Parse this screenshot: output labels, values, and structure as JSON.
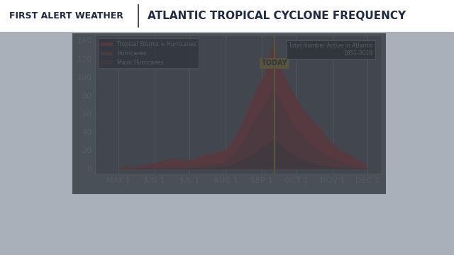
{
  "chart_data": {
    "type": "area",
    "title": "ATLANTIC TROPICAL CYCLONE FREQUENCY",
    "subtitle": "FIRST ALERT WEATHER",
    "note": "Total Number Active in Atlantic\n1851-2018",
    "x": [
      0,
      7,
      14,
      21,
      28,
      35,
      42,
      49,
      56,
      63,
      70,
      77,
      84,
      91,
      98,
      105,
      112,
      119,
      126,
      133,
      140,
      147,
      154,
      161,
      168,
      175,
      182,
      189,
      196,
      203,
      210,
      214
    ],
    "series": [
      {
        "name": "Tropical Storms + Hurricanes",
        "color": "#ff1a1a",
        "values": [
          2,
          3,
          3,
          4,
          6,
          8,
          10,
          12,
          9,
          10,
          14,
          16,
          18,
          20,
          30,
          45,
          68,
          88,
          105,
          138,
          110,
          90,
          75,
          62,
          52,
          42,
          30,
          22,
          18,
          12,
          8,
          4
        ]
      },
      {
        "name": "Hurricanes",
        "color": "#b3201f",
        "values": [
          0,
          0,
          1,
          1,
          2,
          2,
          3,
          3,
          2,
          3,
          4,
          5,
          6,
          8,
          14,
          25,
          42,
          58,
          72,
          88,
          72,
          55,
          42,
          32,
          25,
          18,
          12,
          8,
          5,
          3,
          2,
          1
        ]
      },
      {
        "name": "Major Hurricanes",
        "color": "#6e1c1c",
        "values": [
          0,
          0,
          0,
          0,
          0,
          0,
          0,
          1,
          0,
          1,
          1,
          1,
          2,
          3,
          5,
          9,
          14,
          20,
          26,
          32,
          26,
          18,
          12,
          9,
          6,
          4,
          3,
          2,
          1,
          1,
          0,
          0
        ]
      }
    ],
    "annotations": [
      {
        "x": 134,
        "text": "TODAY",
        "color": "#ffd400"
      }
    ],
    "xlim": [
      -20,
      226
    ],
    "xticks": [
      {
        "value": 0,
        "label": "MAY 1"
      },
      {
        "value": 31,
        "label": "JUN 1"
      },
      {
        "value": 61,
        "label": "JUL 1"
      },
      {
        "value": 92,
        "label": "AUG 1"
      },
      {
        "value": 123,
        "label": "SEP 1"
      },
      {
        "value": 153,
        "label": "OCT 1"
      },
      {
        "value": 184,
        "label": "NOV 1"
      },
      {
        "value": 214,
        "label": "DEC 1"
      }
    ],
    "ylim": [
      -5,
      145
    ],
    "yticks": [
      0,
      20,
      40,
      60,
      80,
      100,
      120,
      140
    ],
    "grid": true,
    "legend": "upper left"
  }
}
